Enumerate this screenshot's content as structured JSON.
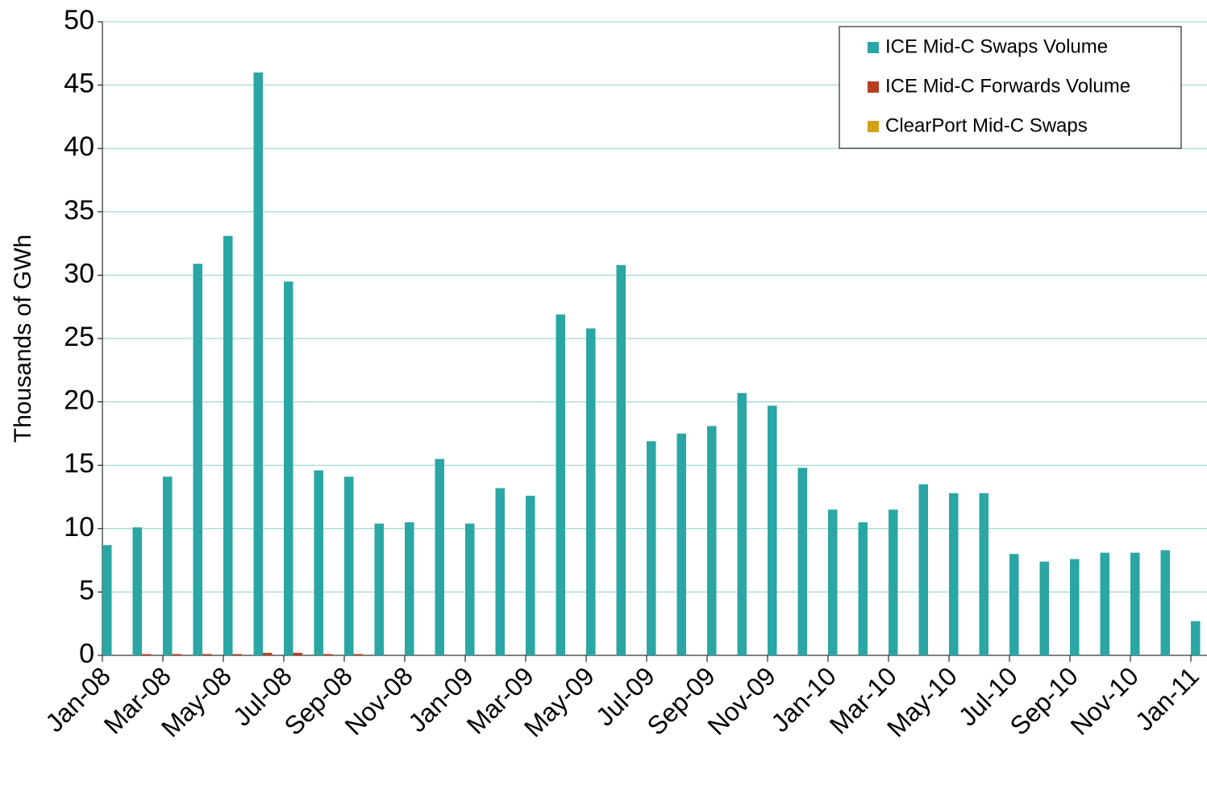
{
  "chart_data": {
    "type": "bar",
    "y_label": "Thousands of GWh",
    "categories": [
      "Jan-08",
      null,
      "Mar-08",
      null,
      "May-08",
      null,
      "Jul-08",
      null,
      "Sep-08",
      null,
      "Nov-08",
      null,
      "Jan-09",
      null,
      "Mar-09",
      null,
      "May-09",
      null,
      "Jul-09",
      null,
      "Sep-09",
      null,
      "Nov-09",
      null,
      "Jan-10",
      null,
      "Mar-10",
      null,
      "May-10",
      null,
      "Jul-10",
      null,
      "Sep-10",
      null,
      "Nov-10",
      null,
      "Jan-11"
    ],
    "series": [
      {
        "name": "ICE Mid-C Swaps Volume",
        "color": "#2aa6a4",
        "values": [
          8.7,
          10.1,
          14.1,
          30.9,
          33.1,
          46.0,
          29.5,
          14.6,
          14.1,
          10.4,
          10.5,
          15.5,
          10.4,
          13.2,
          12.6,
          26.9,
          25.8,
          30.8,
          16.9,
          17.5,
          18.1,
          20.7,
          19.7,
          14.8,
          11.5,
          10.5,
          11.5,
          13.5,
          12.8,
          12.8,
          8.0,
          7.4,
          7.6,
          8.1,
          8.1,
          8.3,
          2.7
        ]
      },
      {
        "name": "ICE Mid-C Forwards Volume",
        "color": "#b5401f",
        "values": [
          0,
          0.1,
          0.1,
          0.1,
          0.1,
          0.2,
          0.2,
          0.1,
          0.1,
          0,
          0,
          0,
          0,
          0,
          0,
          0,
          0,
          0,
          0,
          0,
          0,
          0,
          0,
          0,
          0,
          0,
          0,
          0,
          0,
          0,
          0,
          0,
          0,
          0,
          0,
          0,
          0
        ]
      },
      {
        "name": "ClearPort Mid-C Swaps",
        "color": "#d4a017",
        "values": [
          0,
          0,
          0,
          0,
          0,
          0,
          0,
          0,
          0,
          0,
          0,
          0,
          0,
          0,
          0,
          0,
          0,
          0,
          0,
          0,
          0,
          0,
          0,
          0,
          0,
          0,
          0,
          0,
          0,
          0,
          0,
          0,
          0,
          0,
          0,
          0,
          0
        ]
      }
    ],
    "ylim": [
      0,
      50
    ],
    "yticks": [
      0,
      5,
      10,
      15,
      20,
      25,
      30,
      35,
      40,
      45,
      50
    ],
    "grid": true,
    "legend": "top-right"
  }
}
